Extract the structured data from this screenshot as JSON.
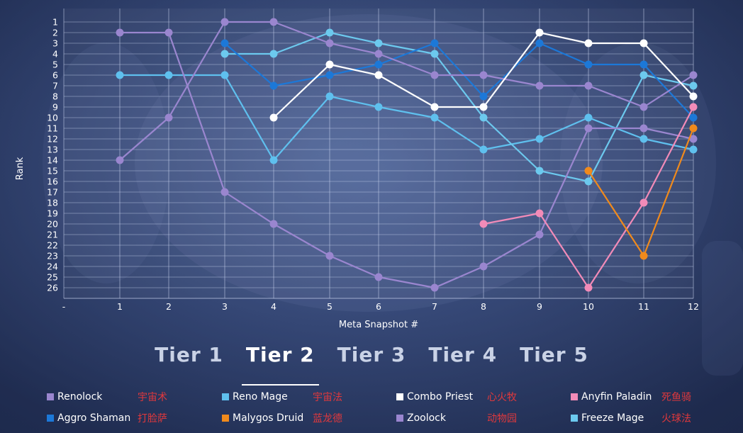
{
  "chart_data": {
    "type": "line",
    "xlabel": "Meta Snapshot #",
    "ylabel": "Rank",
    "x_ticks": [
      "-",
      "1",
      "2",
      "3",
      "4",
      "5",
      "6",
      "7",
      "8",
      "9",
      "10",
      "11",
      "12"
    ],
    "x": [
      1,
      2,
      3,
      4,
      5,
      6,
      7,
      8,
      9,
      10,
      11,
      12
    ],
    "y_ticks": [
      1,
      2,
      3,
      4,
      5,
      6,
      7,
      8,
      9,
      10,
      11,
      12,
      13,
      14,
      15,
      16,
      17,
      18,
      19,
      20,
      21,
      22,
      23,
      24,
      25,
      26
    ],
    "ylim": [
      26,
      1
    ],
    "y_inverted": true,
    "grid": true,
    "legend_position": "bottom",
    "series": [
      {
        "name": "Renolock",
        "name_cn": "宇宙术",
        "color": "#9a86cf",
        "values": [
          2,
          2,
          17,
          20,
          23,
          25,
          26,
          24,
          21,
          11,
          11,
          12
        ]
      },
      {
        "name": "Reno Mage",
        "name_cn": "宇宙法",
        "color": "#5fc0ee",
        "values": [
          6,
          6,
          6,
          14,
          8,
          9,
          10,
          13,
          12,
          10,
          12,
          13
        ]
      },
      {
        "name": "Combo Priest",
        "name_cn": "心火牧",
        "color": "#ffffff",
        "values": [
          null,
          null,
          null,
          10,
          5,
          6,
          9,
          9,
          2,
          3,
          3,
          8
        ]
      },
      {
        "name": "Anyfin Paladin",
        "name_cn": "死鱼骑",
        "color": "#f28bb8",
        "values": [
          null,
          null,
          null,
          null,
          null,
          null,
          null,
          20,
          19,
          26,
          18,
          9
        ]
      },
      {
        "name": "Aggro Shaman",
        "name_cn": "打脸萨",
        "color": "#1c78d8",
        "values": [
          null,
          null,
          3,
          7,
          6,
          5,
          3,
          8,
          3,
          5,
          5,
          10
        ]
      },
      {
        "name": "Malygos Druid",
        "name_cn": "蓝龙德",
        "color": "#f08a1c",
        "values": [
          null,
          null,
          null,
          null,
          null,
          null,
          null,
          null,
          null,
          15,
          23,
          11
        ]
      },
      {
        "name": "Zoolock",
        "name_cn": "动物园",
        "color": "#9a86cf",
        "values": [
          14,
          10,
          1,
          1,
          3,
          4,
          6,
          6,
          7,
          7,
          9,
          6
        ]
      },
      {
        "name": "Freeze Mage",
        "name_cn": "火球法",
        "color": "#6cc9ee",
        "values": [
          null,
          null,
          4,
          4,
          2,
          3,
          4,
          10,
          15,
          16,
          6,
          7
        ]
      }
    ]
  },
  "tiers": [
    "Tier 1",
    "Tier 2",
    "Tier 3",
    "Tier 4",
    "Tier 5"
  ],
  "active_tier": "Tier 2"
}
